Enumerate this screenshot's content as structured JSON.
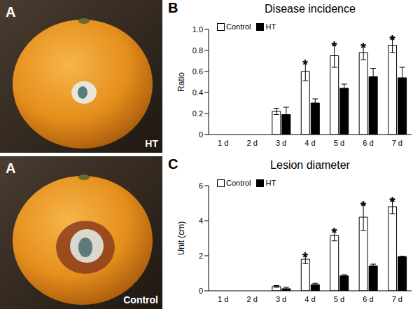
{
  "photos": [
    {
      "label": "A",
      "caption": "HT"
    },
    {
      "label": "A",
      "caption": "Control"
    }
  ],
  "chart_data": [
    {
      "type": "bar",
      "panel": "B",
      "title": "Disease incidence",
      "y_label": "Ratio",
      "categories": [
        "1 d",
        "2 d",
        "3 d",
        "4 d",
        "5 d",
        "6 d",
        "7 d"
      ],
      "series": [
        {
          "name": "Control",
          "color": "#ffffff",
          "values": [
            0,
            0,
            0.22,
            0.6,
            0.75,
            0.78,
            0.85
          ],
          "errors": [
            0,
            0,
            0.03,
            0.09,
            0.11,
            0.07,
            0.07
          ]
        },
        {
          "name": "HT",
          "color": "#000000",
          "values": [
            0,
            0,
            0.19,
            0.3,
            0.44,
            0.55,
            0.54
          ],
          "errors": [
            0,
            0,
            0.07,
            0.04,
            0.04,
            0.08,
            0.1
          ]
        }
      ],
      "ylim": [
        0,
        1
      ],
      "yticks": [
        0,
        0.2,
        0.4,
        0.6,
        0.8,
        {
          "value": 1,
          "label": "1.0"
        }
      ],
      "legend": "upper left",
      "annotations": [
        {
          "category": "4 d",
          "series": "Control",
          "text": "*"
        },
        {
          "category": "5 d",
          "series": "Control",
          "text": "*"
        },
        {
          "category": "6 d",
          "series": "Control",
          "text": "*"
        },
        {
          "category": "7 d",
          "series": "Control",
          "text": "*"
        }
      ]
    },
    {
      "type": "bar",
      "panel": "C",
      "title": "Lesion diameter",
      "y_label": "Unit (cm)",
      "categories": [
        "1 d",
        "2 d",
        "3 d",
        "4 d",
        "5 d",
        "6 d",
        "7 d"
      ],
      "series": [
        {
          "name": "Control",
          "color": "#ffffff",
          "values": [
            0,
            0,
            0.25,
            1.8,
            3.15,
            4.2,
            4.8
          ],
          "errors": [
            0,
            0,
            0.05,
            0.25,
            0.3,
            0.75,
            0.4
          ]
        },
        {
          "name": "HT",
          "color": "#000000",
          "values": [
            0,
            0,
            0.12,
            0.35,
            0.85,
            1.42,
            1.95
          ],
          "errors": [
            0,
            0,
            0.08,
            0.08,
            0.07,
            0.1,
            0.02
          ]
        }
      ],
      "ylim": [
        0,
        6
      ],
      "yticks": [
        0,
        2,
        4,
        6
      ],
      "legend": "upper left",
      "annotations": [
        {
          "category": "4 d",
          "series": "Control",
          "text": "*"
        },
        {
          "category": "5 d",
          "series": "Control",
          "text": "*"
        },
        {
          "category": "6 d",
          "series": "Control",
          "text": "*"
        },
        {
          "category": "7 d",
          "series": "Control",
          "text": "*"
        }
      ]
    }
  ]
}
